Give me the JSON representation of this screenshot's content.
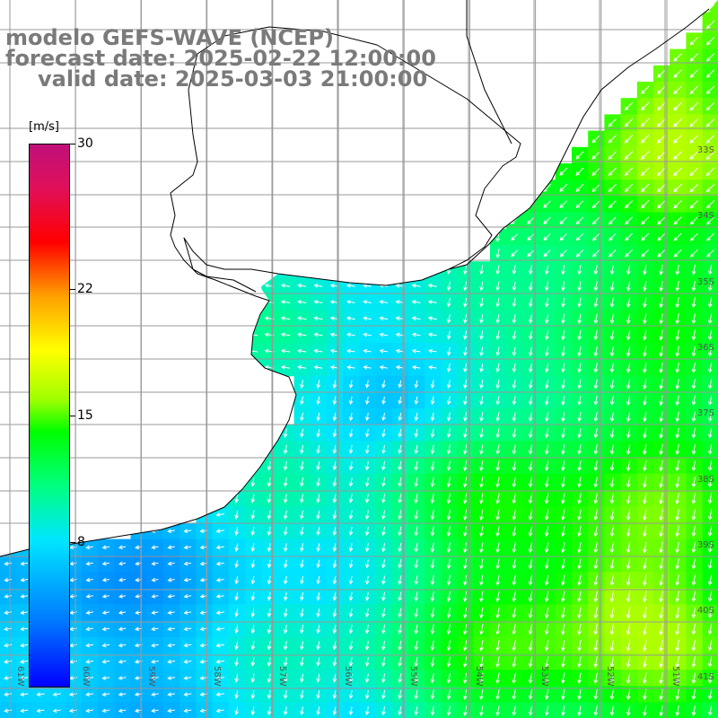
{
  "title": {
    "line1": "modelo GEFS-WAVE (NCEP)",
    "line2": "forecast date: 2025-02-22 12:00:00",
    "line3": "valid date: 2025-03-03 21:00:00"
  },
  "colorbar": {
    "units": "[m/s]",
    "min": 0,
    "max": 30,
    "ticks": [
      {
        "value": 30,
        "label": "30"
      },
      {
        "value": 22,
        "label": "22"
      },
      {
        "value": 15,
        "label": "15"
      },
      {
        "value": 8,
        "label": "8"
      }
    ]
  },
  "map": {
    "lon_range": [
      -61.1,
      -49.9
    ],
    "lat_range": [
      -41.3,
      -31.2
    ],
    "lat_labels": [
      "33S",
      "34S",
      "35S",
      "36S",
      "37S",
      "38S",
      "39S",
      "40S",
      "41S"
    ],
    "lon_labels": [
      "61W",
      "60W",
      "59W",
      "58W",
      "57W",
      "56W",
      "55W",
      "54W",
      "53W",
      "52W",
      "51W"
    ],
    "colors": {
      "land": "#ffffff",
      "grid": "#999999",
      "coast": "#000000",
      "arrow": "#ffffff"
    }
  }
}
